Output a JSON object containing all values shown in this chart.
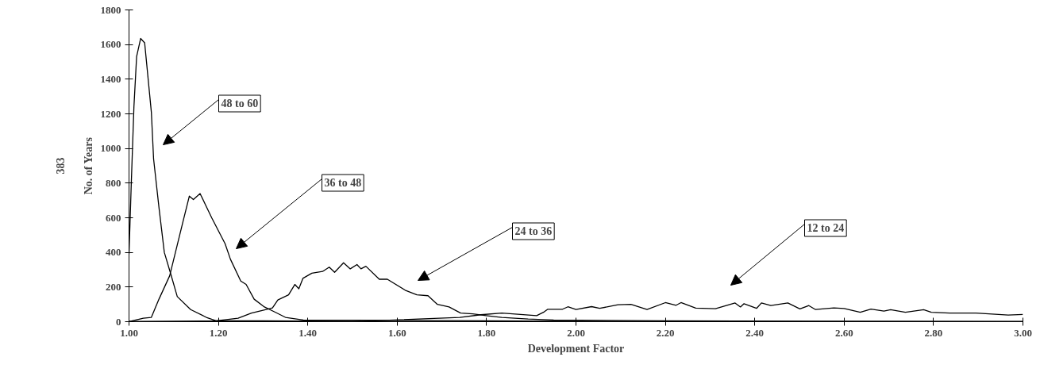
{
  "chart_data": {
    "type": "line",
    "xlabel": "Development Factor",
    "ylabel": "No. of Years",
    "xlim": [
      1.0,
      3.0
    ],
    "xticks": [
      {
        "value": 1.0,
        "label": "1.00"
      },
      {
        "value": 1.2,
        "label": "1.20"
      },
      {
        "value": 1.4,
        "label": "1.40"
      },
      {
        "value": 1.6,
        "label": "1.60"
      },
      {
        "value": 1.8,
        "label": "1.80"
      },
      {
        "value": 2.0,
        "label": "2.00"
      },
      {
        "value": 2.2,
        "label": "2.20"
      },
      {
        "value": 2.4,
        "label": "2.40"
      },
      {
        "value": 2.6,
        "label": "2.60"
      },
      {
        "value": 2.8,
        "label": "2.80"
      },
      {
        "value": 3.0,
        "label": "3.00"
      }
    ],
    "ylim": [
      0,
      1800
    ],
    "yticks": [
      0,
      200,
      400,
      600,
      800,
      1000,
      1200,
      1400,
      1600,
      1800
    ],
    "grid": false,
    "legend": false,
    "marker": "none",
    "line_style": "solid",
    "series": [
      {
        "name": "48 to 60",
        "color": "#000000",
        "x": [
          1.0,
          1.005,
          1.011,
          1.017,
          1.026,
          1.035,
          1.05,
          1.055,
          1.067,
          1.079,
          1.094,
          1.108,
          1.138,
          1.173,
          1.195,
          1.3,
          1.6,
          2.0,
          3.0
        ],
        "values": [
          390,
          790,
          1240,
          1530,
          1635,
          1610,
          1210,
          940,
          660,
          400,
          270,
          145,
          70,
          25,
          5,
          5,
          0,
          0,
          0
        ]
      },
      {
        "name": "36 to 48",
        "color": "#000000",
        "x": [
          1.0,
          1.032,
          1.05,
          1.067,
          1.091,
          1.12,
          1.135,
          1.144,
          1.159,
          1.185,
          1.215,
          1.227,
          1.25,
          1.262,
          1.28,
          1.303,
          1.327,
          1.35,
          1.39,
          1.8,
          2.2,
          3.0
        ],
        "values": [
          0,
          20,
          25,
          130,
          265,
          570,
          725,
          705,
          740,
          600,
          450,
          360,
          235,
          215,
          130,
          85,
          55,
          25,
          10,
          5,
          0,
          0
        ]
      },
      {
        "name": "24 to 36",
        "color": "#000000",
        "x": [
          1.0,
          1.195,
          1.244,
          1.274,
          1.298,
          1.321,
          1.333,
          1.357,
          1.371,
          1.38,
          1.389,
          1.409,
          1.433,
          1.448,
          1.46,
          1.48,
          1.495,
          1.51,
          1.519,
          1.53,
          1.56,
          1.578,
          1.619,
          1.644,
          1.669,
          1.69,
          1.716,
          1.742,
          1.769,
          1.799,
          1.834,
          1.893,
          1.95,
          2.2,
          3.0
        ],
        "values": [
          0,
          5,
          20,
          50,
          65,
          80,
          125,
          155,
          215,
          190,
          250,
          280,
          290,
          315,
          285,
          340,
          305,
          330,
          305,
          320,
          245,
          245,
          180,
          155,
          150,
          100,
          85,
          50,
          45,
          35,
          25,
          15,
          10,
          5,
          0
        ]
      },
      {
        "name": "12 to 24",
        "color": "#000000",
        "x": [
          1.0,
          1.5,
          1.74,
          1.787,
          1.834,
          1.858,
          1.912,
          1.929,
          1.937,
          1.97,
          1.982,
          2.0,
          2.035,
          2.053,
          2.094,
          2.123,
          2.159,
          2.2,
          2.224,
          2.235,
          2.268,
          2.312,
          2.356,
          2.368,
          2.376,
          2.404,
          2.415,
          2.436,
          2.474,
          2.501,
          2.521,
          2.536,
          2.577,
          2.6,
          2.636,
          2.66,
          2.689,
          2.704,
          2.737,
          2.778,
          2.795,
          2.836,
          2.895,
          2.967,
          3.0
        ],
        "values": [
          0,
          0,
          25,
          40,
          50,
          45,
          35,
          57,
          72,
          72,
          86,
          70,
          87,
          77,
          98,
          100,
          70,
          110,
          95,
          110,
          78,
          75,
          108,
          85,
          104,
          77,
          108,
          93,
          108,
          74,
          93,
          70,
          80,
          76,
          54,
          73,
          61,
          69,
          54,
          69,
          54,
          50,
          50,
          38,
          42
        ]
      }
    ],
    "annotations": [
      "383"
    ]
  }
}
